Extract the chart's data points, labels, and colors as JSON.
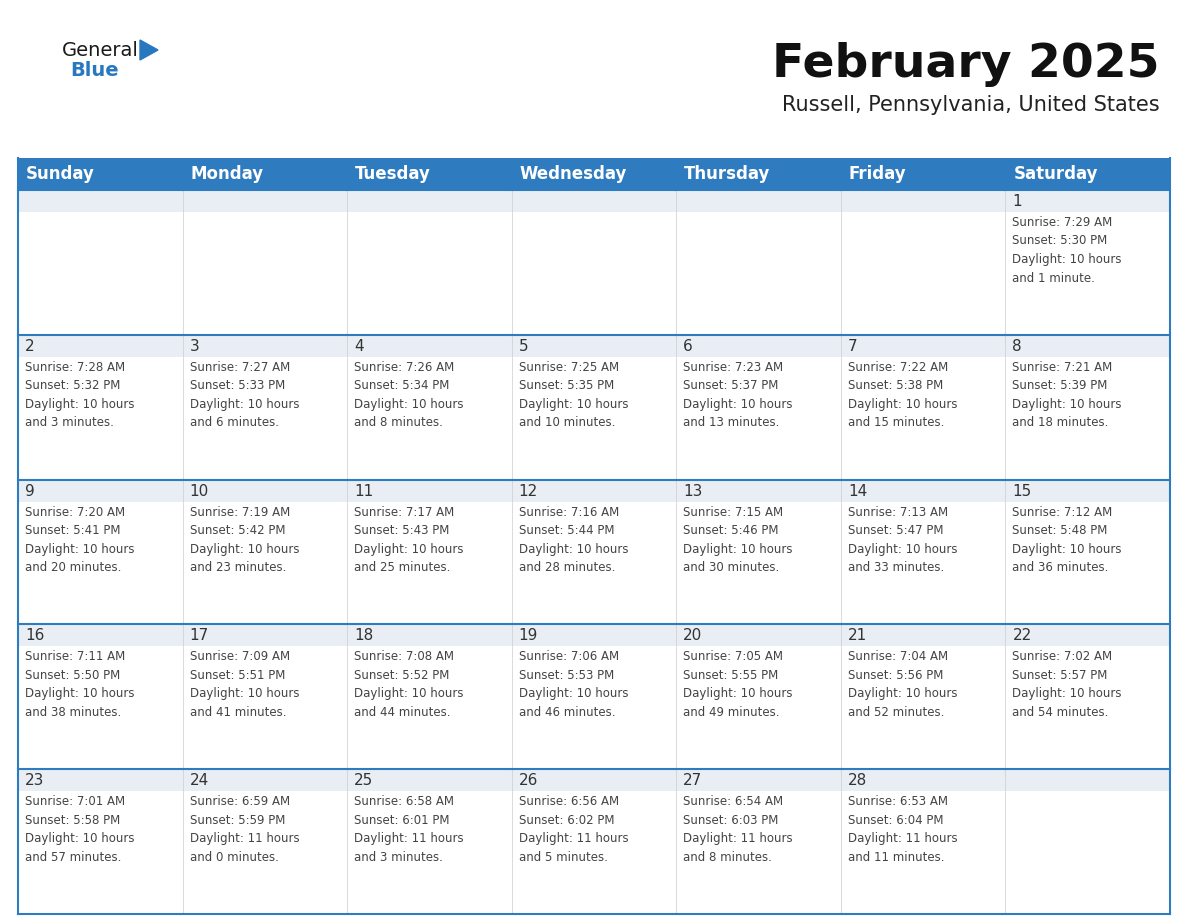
{
  "title": "February 2025",
  "subtitle": "Russell, Pennsylvania, United States",
  "header_bg": "#2E7BBF",
  "header_text_color": "#FFFFFF",
  "cell_bg": "#FFFFFF",
  "cell_border_color": "#2E7BBF",
  "day_number_color": "#333333",
  "cell_text_color": "#444444",
  "logo_general_color": "#1a1a1a",
  "logo_blue_color": "#2878C0",
  "logo_triangle_color": "#2878C0",
  "days_of_week": [
    "Sunday",
    "Monday",
    "Tuesday",
    "Wednesday",
    "Thursday",
    "Friday",
    "Saturday"
  ],
  "title_fontsize": 34,
  "subtitle_fontsize": 15,
  "header_fontsize": 12,
  "day_num_fontsize": 11,
  "cell_text_fontsize": 8.5,
  "row_shade_color": "#E8EEF4",
  "weeks": [
    [
      {
        "day": "",
        "info": ""
      },
      {
        "day": "",
        "info": ""
      },
      {
        "day": "",
        "info": ""
      },
      {
        "day": "",
        "info": ""
      },
      {
        "day": "",
        "info": ""
      },
      {
        "day": "",
        "info": ""
      },
      {
        "day": "1",
        "info": "Sunrise: 7:29 AM\nSunset: 5:30 PM\nDaylight: 10 hours\nand 1 minute."
      }
    ],
    [
      {
        "day": "2",
        "info": "Sunrise: 7:28 AM\nSunset: 5:32 PM\nDaylight: 10 hours\nand 3 minutes."
      },
      {
        "day": "3",
        "info": "Sunrise: 7:27 AM\nSunset: 5:33 PM\nDaylight: 10 hours\nand 6 minutes."
      },
      {
        "day": "4",
        "info": "Sunrise: 7:26 AM\nSunset: 5:34 PM\nDaylight: 10 hours\nand 8 minutes."
      },
      {
        "day": "5",
        "info": "Sunrise: 7:25 AM\nSunset: 5:35 PM\nDaylight: 10 hours\nand 10 minutes."
      },
      {
        "day": "6",
        "info": "Sunrise: 7:23 AM\nSunset: 5:37 PM\nDaylight: 10 hours\nand 13 minutes."
      },
      {
        "day": "7",
        "info": "Sunrise: 7:22 AM\nSunset: 5:38 PM\nDaylight: 10 hours\nand 15 minutes."
      },
      {
        "day": "8",
        "info": "Sunrise: 7:21 AM\nSunset: 5:39 PM\nDaylight: 10 hours\nand 18 minutes."
      }
    ],
    [
      {
        "day": "9",
        "info": "Sunrise: 7:20 AM\nSunset: 5:41 PM\nDaylight: 10 hours\nand 20 minutes."
      },
      {
        "day": "10",
        "info": "Sunrise: 7:19 AM\nSunset: 5:42 PM\nDaylight: 10 hours\nand 23 minutes."
      },
      {
        "day": "11",
        "info": "Sunrise: 7:17 AM\nSunset: 5:43 PM\nDaylight: 10 hours\nand 25 minutes."
      },
      {
        "day": "12",
        "info": "Sunrise: 7:16 AM\nSunset: 5:44 PM\nDaylight: 10 hours\nand 28 minutes."
      },
      {
        "day": "13",
        "info": "Sunrise: 7:15 AM\nSunset: 5:46 PM\nDaylight: 10 hours\nand 30 minutes."
      },
      {
        "day": "14",
        "info": "Sunrise: 7:13 AM\nSunset: 5:47 PM\nDaylight: 10 hours\nand 33 minutes."
      },
      {
        "day": "15",
        "info": "Sunrise: 7:12 AM\nSunset: 5:48 PM\nDaylight: 10 hours\nand 36 minutes."
      }
    ],
    [
      {
        "day": "16",
        "info": "Sunrise: 7:11 AM\nSunset: 5:50 PM\nDaylight: 10 hours\nand 38 minutes."
      },
      {
        "day": "17",
        "info": "Sunrise: 7:09 AM\nSunset: 5:51 PM\nDaylight: 10 hours\nand 41 minutes."
      },
      {
        "day": "18",
        "info": "Sunrise: 7:08 AM\nSunset: 5:52 PM\nDaylight: 10 hours\nand 44 minutes."
      },
      {
        "day": "19",
        "info": "Sunrise: 7:06 AM\nSunset: 5:53 PM\nDaylight: 10 hours\nand 46 minutes."
      },
      {
        "day": "20",
        "info": "Sunrise: 7:05 AM\nSunset: 5:55 PM\nDaylight: 10 hours\nand 49 minutes."
      },
      {
        "day": "21",
        "info": "Sunrise: 7:04 AM\nSunset: 5:56 PM\nDaylight: 10 hours\nand 52 minutes."
      },
      {
        "day": "22",
        "info": "Sunrise: 7:02 AM\nSunset: 5:57 PM\nDaylight: 10 hours\nand 54 minutes."
      }
    ],
    [
      {
        "day": "23",
        "info": "Sunrise: 7:01 AM\nSunset: 5:58 PM\nDaylight: 10 hours\nand 57 minutes."
      },
      {
        "day": "24",
        "info": "Sunrise: 6:59 AM\nSunset: 5:59 PM\nDaylight: 11 hours\nand 0 minutes."
      },
      {
        "day": "25",
        "info": "Sunrise: 6:58 AM\nSunset: 6:01 PM\nDaylight: 11 hours\nand 3 minutes."
      },
      {
        "day": "26",
        "info": "Sunrise: 6:56 AM\nSunset: 6:02 PM\nDaylight: 11 hours\nand 5 minutes."
      },
      {
        "day": "27",
        "info": "Sunrise: 6:54 AM\nSunset: 6:03 PM\nDaylight: 11 hours\nand 8 minutes."
      },
      {
        "day": "28",
        "info": "Sunrise: 6:53 AM\nSunset: 6:04 PM\nDaylight: 11 hours\nand 11 minutes."
      },
      {
        "day": "",
        "info": ""
      }
    ]
  ]
}
